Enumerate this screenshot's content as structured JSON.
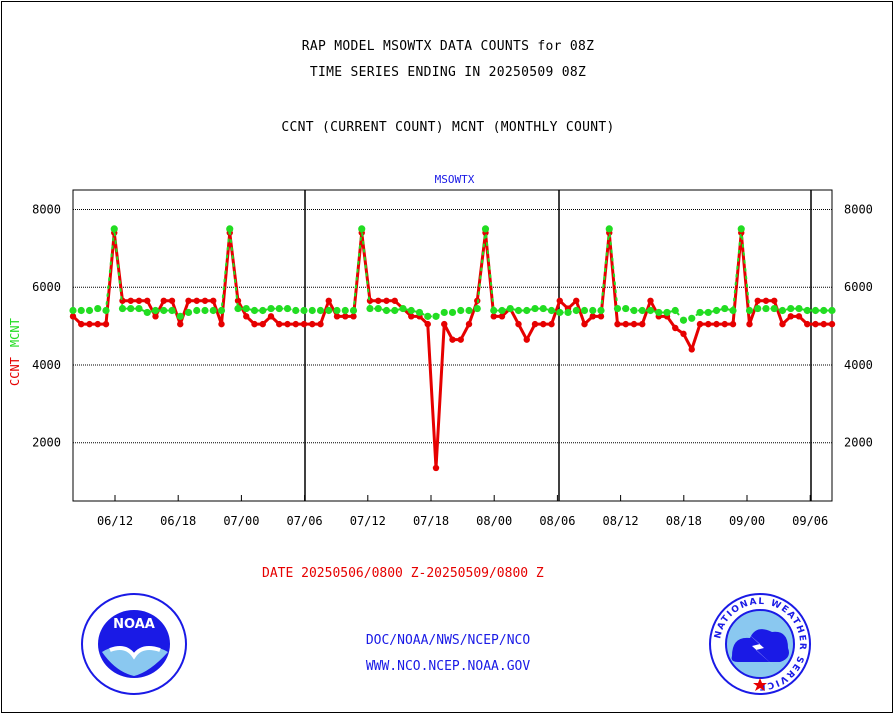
{
  "titles": {
    "line1": "RAP MODEL MSOWTX DATA COUNTS for 08Z",
    "line2": "TIME SERIES ENDING IN 20250509 08Z",
    "line3": "CCNT (CURRENT COUNT) MCNT (MONTHLY COUNT)"
  },
  "footer": {
    "date_range": "DATE 20250506/0800 Z-20250509/0800 Z",
    "org_line": "DOC/NOAA/NWS/NCEP/NCO",
    "url_line": "WWW.NCO.NCEP.NOAA.GOV"
  },
  "logos": {
    "noaa_text": "NOAA",
    "nws_text": "NATIONAL WEATHER SERVICE"
  },
  "colors": {
    "ccnt": "#e60000",
    "mcnt": "#22dd22",
    "label_blue": "#1a1ae6"
  },
  "chart_data": {
    "type": "line",
    "title": "MSOWTX",
    "ylabel_ccnt": "CCNT",
    "ylabel_mcnt": "MCNT",
    "ylim": [
      500,
      8500
    ],
    "y_ticks": [
      "2000",
      "4000",
      "6000",
      "8000"
    ],
    "x_ticks": [
      "06/12",
      "06/18",
      "07/00",
      "07/06",
      "07/12",
      "07/18",
      "08/00",
      "08/06",
      "08/12",
      "08/18",
      "09/00",
      "09/06"
    ],
    "grid": true,
    "series": [
      {
        "name": "CCNT",
        "values": [
          5250,
          5050,
          5050,
          5050,
          5050,
          7400,
          5650,
          5650,
          5650,
          5650,
          5250,
          5650,
          5650,
          5050,
          5650,
          5650,
          5650,
          5650,
          5050,
          7400,
          5650,
          5250,
          5050,
          5050,
          5250,
          5050,
          5050,
          5050,
          5050,
          5050,
          5050,
          5650,
          5250,
          5250,
          5250,
          7400,
          5650,
          5650,
          5650,
          5650,
          5450,
          5250,
          5250,
          5050,
          1350,
          5050,
          4650,
          4650,
          5050,
          5650,
          7400,
          5250,
          5250,
          5450,
          5050,
          4650,
          5050,
          5050,
          5050,
          5650,
          5450,
          5650,
          5050,
          5250,
          5250,
          7400,
          5050,
          5050,
          5050,
          5050,
          5650,
          5250,
          5250,
          4950,
          4800,
          4400,
          5050,
          5050,
          5050,
          5050,
          5050,
          7400,
          5050,
          5650,
          5650,
          5650,
          5050,
          5250,
          5250,
          5050,
          5050,
          5050,
          5050
        ],
        "markers_at": [
          0,
          2,
          3,
          4,
          5,
          7,
          8,
          9,
          10,
          11,
          12,
          13,
          14,
          15,
          16,
          17,
          18,
          19,
          21,
          22,
          23,
          24,
          25,
          26,
          27,
          28,
          29,
          30,
          31,
          32,
          33,
          34,
          35,
          36,
          37,
          38,
          39,
          40,
          41,
          42,
          43,
          44,
          45,
          46,
          47,
          48,
          49,
          50,
          51,
          52,
          53,
          54,
          55,
          56,
          57,
          58,
          59,
          60,
          61,
          62,
          63,
          64,
          65,
          66,
          67,
          68,
          69,
          70,
          71,
          72,
          73,
          74,
          75,
          76,
          77,
          78,
          79,
          80,
          81,
          82,
          83,
          84,
          85,
          86,
          87,
          88,
          89,
          90,
          91
        ]
      },
      {
        "name": "MCNT",
        "values": [
          5400,
          5400,
          5400,
          5450,
          5400,
          7500,
          5450,
          5450,
          5450,
          5350,
          5400,
          5400,
          5400,
          5250,
          5350,
          5400,
          5400,
          5400,
          5400,
          7500,
          5450,
          5450,
          5400,
          5400,
          5450,
          5450,
          5450,
          5400,
          5400,
          5400,
          5400,
          5400,
          5400,
          5400,
          5400,
          7500,
          5450,
          5450,
          5400,
          5400,
          5450,
          5400,
          5350,
          5250,
          5250,
          5350,
          5350,
          5400,
          5400,
          5450,
          7500,
          5400,
          5400,
          5450,
          5400,
          5400,
          5450,
          5450,
          5400,
          5350,
          5350,
          5400,
          5400,
          5400,
          5400,
          7500,
          5450,
          5450,
          5400,
          5400,
          5400,
          5350,
          5350,
          5400,
          5150,
          5200,
          5350,
          5350,
          5400,
          5450,
          5400,
          7500,
          5400,
          5450,
          5450,
          5450,
          5400,
          5450,
          5450,
          5400,
          5400,
          5400,
          5400
        ]
      }
    ]
  }
}
